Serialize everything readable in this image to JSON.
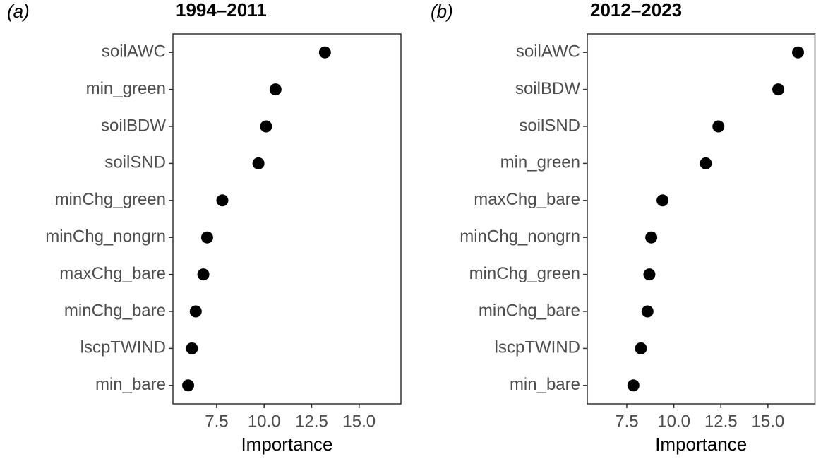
{
  "chart_data": [
    {
      "type": "dot",
      "panel_label": "(a)",
      "title": "1994–2011",
      "x_label": "Importance",
      "categories": [
        "soilAWC",
        "min_green",
        "soilBDW",
        "soilSND",
        "minChg_green",
        "minChg_nongrn",
        "maxChg_bare",
        "minChg_bare",
        "lscpTWIND",
        "min_bare"
      ],
      "values": [
        13.2,
        10.6,
        10.1,
        9.7,
        7.8,
        7.0,
        6.8,
        6.4,
        6.2,
        6.0
      ],
      "color": "#000000",
      "xlim": [
        5.2,
        17.2
      ],
      "xticks": [
        7.5,
        {
          "value": 10,
          "label": "10.0"
        },
        12.5,
        {
          "value": 15,
          "label": "15.0"
        }
      ]
    },
    {
      "type": "dot",
      "panel_label": "(b)",
      "title": "2012–2023",
      "x_label": "Importance",
      "categories": [
        "soilAWC",
        "soilBDW",
        "soilSND",
        "min_green",
        "maxChg_bare",
        "minChg_nongrn",
        "minChg_green",
        "minChg_bare",
        "lscpTWIND",
        "min_bare"
      ],
      "values": [
        16.6,
        15.55,
        12.37,
        11.7,
        9.4,
        8.8,
        8.7,
        8.6,
        8.25,
        7.85
      ],
      "color": "#000000",
      "xlim": [
        5.4,
        17.5
      ],
      "xticks": [
        7.5,
        {
          "value": 10,
          "label": "10.0"
        },
        12.5,
        {
          "value": 15,
          "label": "15.0"
        }
      ]
    }
  ]
}
